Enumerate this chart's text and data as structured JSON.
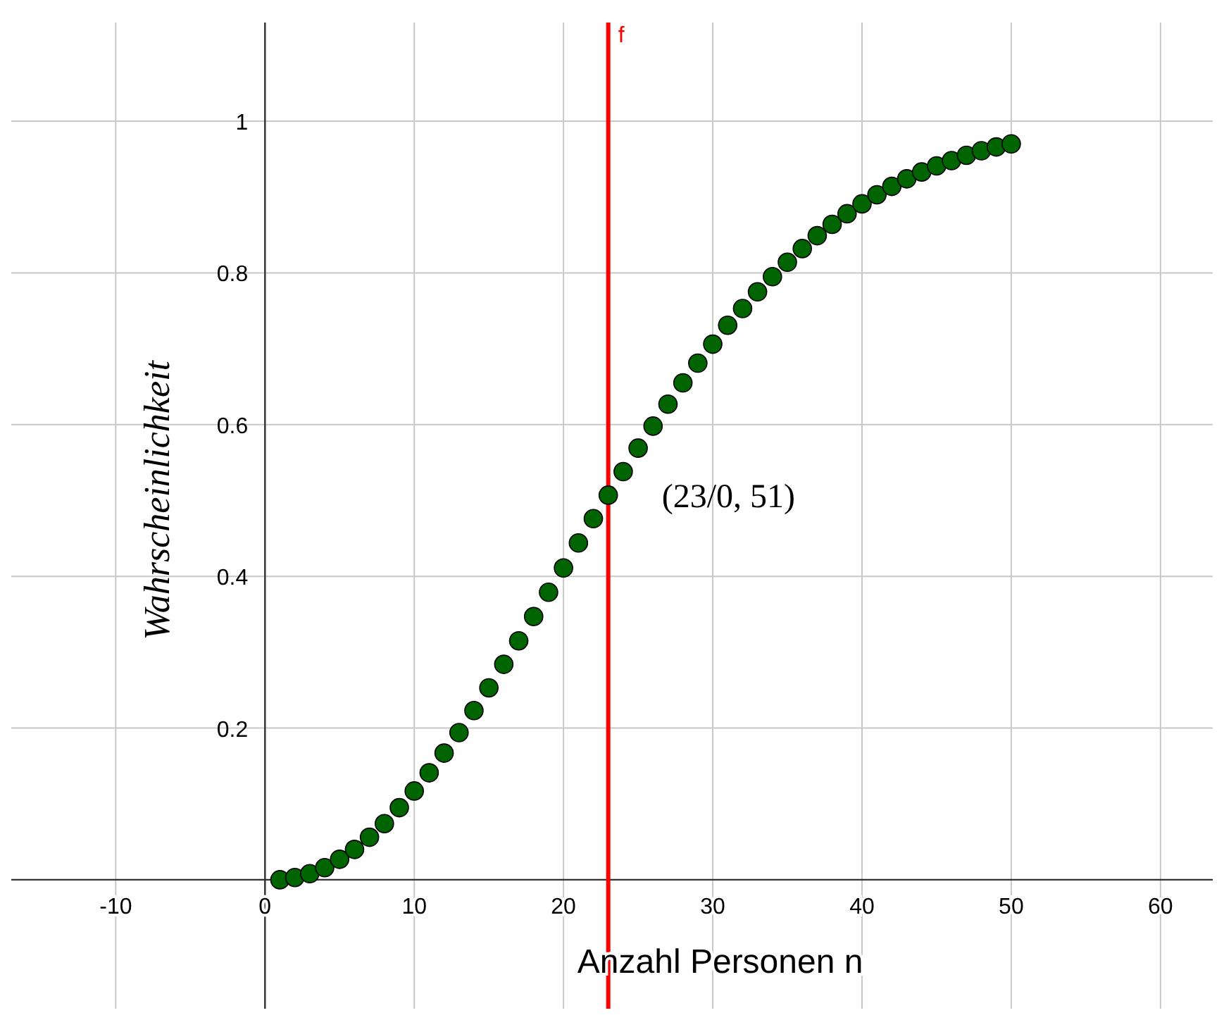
{
  "chart_data": {
    "type": "scatter",
    "xlabel": "Anzahl Personen n",
    "ylabel": "Wahrscheinlichkeit",
    "x": [
      1,
      2,
      3,
      4,
      5,
      6,
      7,
      8,
      9,
      10,
      11,
      12,
      13,
      14,
      15,
      16,
      17,
      18,
      19,
      20,
      21,
      22,
      23,
      24,
      25,
      26,
      27,
      28,
      29,
      30,
      31,
      32,
      33,
      34,
      35,
      36,
      37,
      38,
      39,
      40,
      41,
      42,
      43,
      44,
      45,
      46,
      47,
      48,
      49,
      50
    ],
    "series": [
      {
        "color": "#006400",
        "values": [
          0,
          0.003,
          0.008,
          0.016,
          0.027,
          0.04,
          0.056,
          0.074,
          0.095,
          0.117,
          0.141,
          0.167,
          0.194,
          0.223,
          0.253,
          0.284,
          0.315,
          0.347,
          0.379,
          0.411,
          0.444,
          0.476,
          0.507,
          0.538,
          0.569,
          0.598,
          0.627,
          0.655,
          0.681,
          0.706,
          0.731,
          0.753,
          0.775,
          0.795,
          0.814,
          0.832,
          0.849,
          0.864,
          0.878,
          0.891,
          0.903,
          0.914,
          0.924,
          0.933,
          0.941,
          0.948,
          0.955,
          0.961,
          0.966,
          0.97
        ]
      }
    ],
    "marker": "circle",
    "grid": true,
    "xlim": [
      -17,
      63.5
    ],
    "ylim": [
      -0.17,
      1.13
    ],
    "xticks": [
      -10,
      0,
      10,
      20,
      30,
      40,
      50,
      60
    ],
    "yticks": [
      0.2,
      0.4,
      0.6,
      0.8,
      1
    ],
    "ref_lines": [
      {
        "axis": "x",
        "value": 23,
        "label": "f",
        "color": "#ff0000"
      }
    ],
    "annotations": [
      {
        "text": "(23/0, 51)",
        "x": 23,
        "y": 0.51
      }
    ]
  }
}
